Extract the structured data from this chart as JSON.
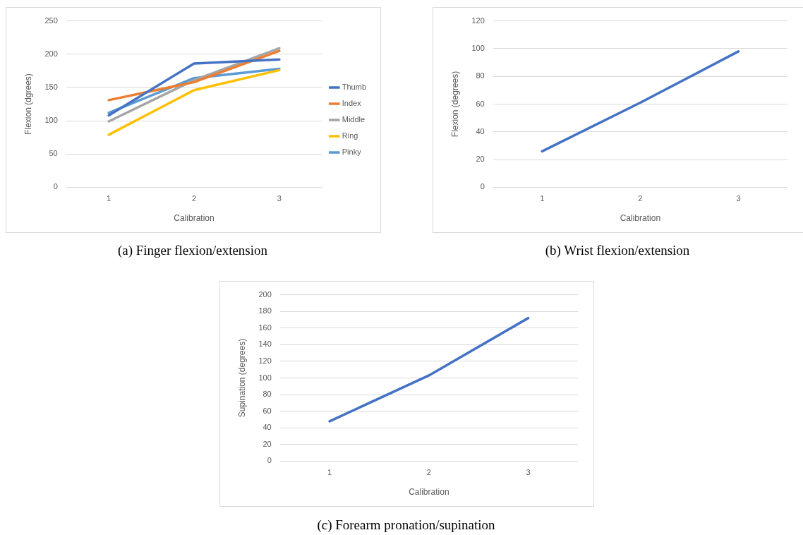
{
  "chart_data": [
    {
      "type": "line",
      "title": "(a)  Finger flexion/extension",
      "xlabel": "Calibration",
      "ylabel": "Flexion (dgrees)",
      "categories": [
        "1",
        "2",
        "3"
      ],
      "series": [
        {
          "name": "Thumb",
          "color": "#4472c4",
          "values": [
            108,
            186,
            192
          ]
        },
        {
          "name": "Index",
          "color": "#ed7d31",
          "values": [
            131,
            158,
            205
          ]
        },
        {
          "name": "Middle",
          "color": "#a5a5a5",
          "values": [
            99,
            161,
            209
          ]
        },
        {
          "name": "Ring",
          "color": "#ffc000",
          "values": [
            79,
            146,
            176
          ]
        },
        {
          "name": "Pinky",
          "color": "#5b9bd5",
          "values": [
            112,
            164,
            178
          ]
        }
      ],
      "ylim": [
        0,
        250
      ],
      "yticks": [
        0,
        50,
        100,
        150,
        200,
        250
      ],
      "grid": "y",
      "legend": "right",
      "marker": "none",
      "line_style": "solid"
    },
    {
      "type": "line",
      "title": "(b)  Wrist flexion/extension",
      "xlabel": "Calibration",
      "ylabel": "Flexion (degrees)",
      "categories": [
        "1",
        "2",
        "3"
      ],
      "series": [
        {
          "color": "#4472c4",
          "values": [
            26,
            61,
            98
          ]
        }
      ],
      "ylim": [
        0,
        120
      ],
      "yticks": [
        0,
        20,
        40,
        60,
        80,
        100,
        120
      ],
      "grid": "y",
      "marker": "none",
      "line_style": "solid"
    },
    {
      "type": "line",
      "title": "(c)  Forearm pronation/supination",
      "xlabel": "Calibration",
      "ylabel": "Supination (degrees)",
      "categories": [
        "1",
        "2",
        "3"
      ],
      "series": [
        {
          "color": "#4472c4",
          "values": [
            48,
            103,
            172
          ]
        }
      ],
      "ylim": [
        0,
        200
      ],
      "yticks": [
        0,
        20,
        40,
        60,
        80,
        100,
        120,
        140,
        160,
        180,
        200
      ],
      "grid": "y",
      "marker": "none",
      "line_style": "solid"
    }
  ]
}
